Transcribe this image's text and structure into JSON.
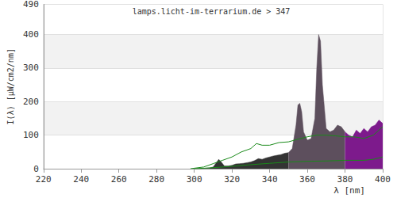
{
  "chart_data": {
    "type": "line",
    "title": "lamps.licht-im-terrarium.de > 347",
    "x_label": "λ [nm]",
    "y_label": "I(λ) [µW/cm2/nm]",
    "xlim": [
      220,
      400
    ],
    "xticks": [
      220,
      240,
      260,
      280,
      300,
      320,
      340,
      360,
      380,
      400
    ],
    "ylim": [
      0,
      490
    ],
    "yticks": [
      0,
      100,
      200,
      300,
      400
    ],
    "grid": true,
    "series": [
      {
        "type": "area",
        "color": "#333333",
        "x": [
          300,
          302,
          304,
          306,
          308,
          310,
          312,
          313,
          314,
          316,
          318,
          320,
          322,
          324,
          326,
          328,
          330,
          332,
          334,
          336,
          338,
          340,
          342,
          344,
          346,
          348,
          350
        ],
        "values": [
          0,
          0,
          0,
          1,
          2,
          5,
          20,
          28,
          22,
          8,
          8,
          10,
          14,
          15,
          16,
          18,
          20,
          24,
          30,
          28,
          32,
          35,
          38,
          40,
          42,
          46,
          48
        ]
      },
      {
        "type": "area",
        "color": "#5d4f5d",
        "x": [
          350,
          352,
          354,
          355,
          356,
          357,
          358,
          360,
          362,
          364,
          365,
          366,
          367,
          368,
          370,
          372,
          374,
          376,
          378,
          380
        ],
        "values": [
          48,
          60,
          130,
          190,
          195,
          170,
          110,
          85,
          90,
          150,
          300,
          400,
          380,
          250,
          120,
          110,
          115,
          130,
          125,
          110
        ]
      },
      {
        "type": "area",
        "color": "#7d1a8c",
        "x": [
          380,
          382,
          384,
          386,
          388,
          390,
          392,
          394,
          396,
          398,
          400
        ],
        "values": [
          110,
          100,
          95,
          115,
          105,
          120,
          110,
          125,
          130,
          145,
          135
        ]
      },
      {
        "type": "line",
        "color": "#1a8a1a",
        "x": [
          298,
          305,
          310,
          315,
          320,
          325,
          330,
          333,
          336,
          340,
          345,
          350,
          355,
          360,
          365,
          370,
          375,
          380,
          385,
          390,
          395,
          400
        ],
        "values": [
          0,
          5,
          15,
          25,
          35,
          50,
          60,
          75,
          70,
          70,
          78,
          80,
          88,
          95,
          100,
          100,
          98,
          95,
          95,
          90,
          100,
          125
        ]
      },
      {
        "type": "line",
        "color": "#1a8a1a",
        "x": [
          300,
          310,
          320,
          330,
          340,
          350,
          360,
          370,
          380,
          390,
          395,
          400
        ],
        "values": [
          0,
          3,
          7,
          12,
          16,
          20,
          22,
          23,
          25,
          25,
          28,
          35
        ]
      }
    ]
  }
}
